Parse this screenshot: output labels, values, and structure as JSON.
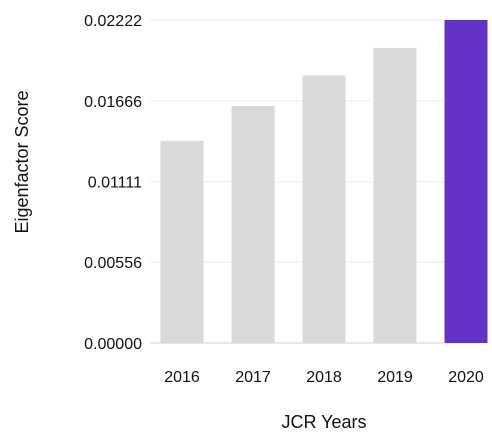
{
  "chart_data": {
    "type": "bar",
    "categories": [
      "2016",
      "2017",
      "2018",
      "2019",
      "2020"
    ],
    "values": [
      0.0139,
      0.0163,
      0.0184,
      0.0203,
      0.02222
    ],
    "xlabel": "JCR Years",
    "ylabel": "Eigenfactor Score",
    "ylim": [
      0,
      0.02222
    ],
    "yticks": [
      "0.00000",
      "0.00556",
      "0.01111",
      "0.01666",
      "0.02222"
    ],
    "ytick_values": [
      0,
      0.00556,
      0.01111,
      0.01666,
      0.02222
    ],
    "grid": true,
    "colors": {
      "bar_default": "#d9d9d9",
      "bar_highlight": "#6233c5",
      "grid": "#eeeeee",
      "axis_line": "#d0d0d0"
    },
    "highlight_index": 4
  }
}
